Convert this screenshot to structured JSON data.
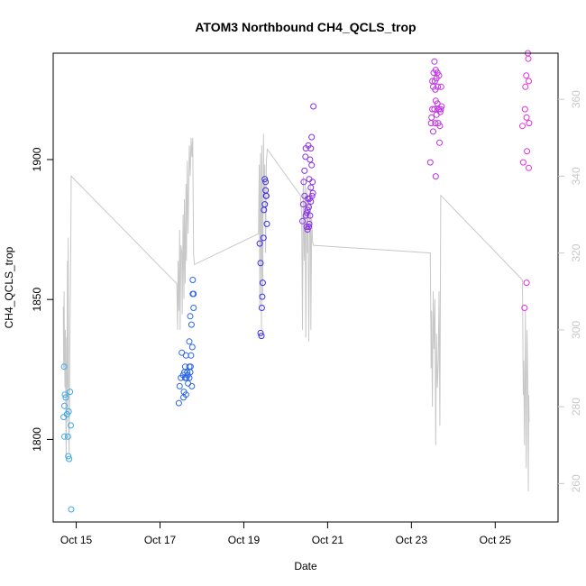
{
  "chart_data": {
    "type": "scatter",
    "title": "ATOM3 Northbound CH4_QCLS_trop",
    "xlabel": "Date",
    "ylabel": "CH4_QCLS_trop",
    "xlim": [
      14.45,
      26.5
    ],
    "ylim": [
      1770.5,
      1938
    ],
    "y2lim": [
      250,
      372
    ],
    "x_ticks": [
      15,
      17,
      19,
      21,
      23,
      25
    ],
    "x_tick_labels": [
      "Oct 15",
      "Oct 17",
      "Oct 19",
      "Oct 21",
      "Oct 23",
      "Oct 25"
    ],
    "y_ticks": [
      1800,
      1850,
      1900
    ],
    "y_tick_labels": [
      "1800",
      "1850",
      "1900"
    ],
    "y2_ticks": [
      260,
      280,
      300,
      320,
      340,
      360
    ],
    "y2_tick_labels": [
      "260",
      "280",
      "300",
      "320",
      "340",
      "360"
    ],
    "secondary_series_color": "#c8c8c8",
    "point_colors_note": "markers colored by time: sky blue -> blue -> purple -> magenta",
    "series": [
      {
        "color": "#3fa7e6",
        "points": [
          [
            14.71,
            1826
          ],
          [
            14.73,
            1816
          ],
          [
            14.75,
            1815
          ],
          [
            14.72,
            1812
          ],
          [
            14.7,
            1808
          ],
          [
            14.72,
            1801
          ],
          [
            14.8,
            1801
          ],
          [
            14.82,
            1810
          ],
          [
            14.78,
            1809
          ],
          [
            14.85,
            1817
          ],
          [
            14.87,
            1805
          ],
          [
            14.81,
            1794
          ],
          [
            14.83,
            1793
          ],
          [
            14.88,
            1775
          ]
        ]
      },
      {
        "color": "#2c66e6",
        "points": [
          [
            17.45,
            1813
          ],
          [
            17.47,
            1819
          ],
          [
            17.5,
            1822
          ],
          [
            17.52,
            1831
          ],
          [
            17.55,
            1823
          ],
          [
            17.57,
            1817
          ],
          [
            17.58,
            1824
          ],
          [
            17.6,
            1826
          ],
          [
            17.6,
            1822
          ],
          [
            17.62,
            1830
          ],
          [
            17.63,
            1822
          ],
          [
            17.65,
            1824
          ],
          [
            17.66,
            1823
          ],
          [
            17.67,
            1820
          ],
          [
            17.7,
            1826
          ],
          [
            17.7,
            1822
          ],
          [
            17.7,
            1835
          ],
          [
            17.72,
            1844
          ],
          [
            17.72,
            1824
          ],
          [
            17.73,
            1826
          ],
          [
            17.74,
            1830
          ],
          [
            17.75,
            1841
          ],
          [
            17.76,
            1819
          ],
          [
            17.77,
            1833
          ],
          [
            17.78,
            1852
          ],
          [
            17.78,
            1857
          ],
          [
            17.8,
            1847
          ],
          [
            17.8,
            1852
          ],
          [
            17.56,
            1815
          ],
          [
            17.62,
            1816
          ]
        ]
      },
      {
        "color": "#3a2fe6",
        "points": [
          [
            19.38,
            1870
          ],
          [
            19.4,
            1863
          ],
          [
            19.4,
            1838
          ],
          [
            19.42,
            1837
          ],
          [
            19.43,
            1847
          ],
          [
            19.44,
            1851
          ],
          [
            19.45,
            1856
          ],
          [
            19.47,
            1872
          ],
          [
            19.48,
            1882
          ],
          [
            19.5,
            1884
          ],
          [
            19.5,
            1893
          ],
          [
            19.52,
            1892
          ],
          [
            19.52,
            1889
          ],
          [
            19.53,
            1887
          ],
          [
            19.54,
            1887
          ],
          [
            19.55,
            1877
          ]
        ]
      },
      {
        "color": "#8a2fe6",
        "points": [
          [
            20.4,
            1878
          ],
          [
            20.42,
            1884
          ],
          [
            20.43,
            1892
          ],
          [
            20.45,
            1896
          ],
          [
            20.45,
            1887
          ],
          [
            20.47,
            1901
          ],
          [
            20.48,
            1904
          ],
          [
            20.5,
            1876
          ],
          [
            20.5,
            1881
          ],
          [
            20.52,
            1882
          ],
          [
            20.52,
            1875
          ],
          [
            20.53,
            1886
          ],
          [
            20.55,
            1883
          ],
          [
            20.55,
            1876
          ],
          [
            20.56,
            1877
          ],
          [
            20.57,
            1886
          ],
          [
            20.58,
            1880
          ],
          [
            20.58,
            1900
          ],
          [
            20.6,
            1890
          ],
          [
            20.6,
            1904
          ],
          [
            20.62,
            1898
          ],
          [
            20.62,
            1908
          ],
          [
            20.63,
            1887
          ],
          [
            20.65,
            1888
          ],
          [
            20.64,
            1892
          ],
          [
            20.66,
            1919
          ],
          [
            20.54,
            1905
          ],
          [
            20.48,
            1880
          ],
          [
            20.6,
            1885
          ],
          [
            20.56,
            1893
          ]
        ]
      },
      {
        "color": "#c12fe6",
        "points": [
          [
            23.45,
            1899
          ],
          [
            23.47,
            1913
          ],
          [
            23.48,
            1915
          ],
          [
            23.5,
            1928
          ],
          [
            23.5,
            1918
          ],
          [
            23.52,
            1926
          ],
          [
            23.53,
            1931
          ],
          [
            23.55,
            1935
          ],
          [
            23.55,
            1918
          ],
          [
            23.57,
            1913
          ],
          [
            23.57,
            1925
          ],
          [
            23.58,
            1894
          ],
          [
            23.58,
            1932
          ],
          [
            23.6,
            1929
          ],
          [
            23.6,
            1916
          ],
          [
            23.62,
            1920
          ],
          [
            23.62,
            1931
          ],
          [
            23.63,
            1926
          ],
          [
            23.65,
            1918
          ],
          [
            23.66,
            1930
          ],
          [
            23.67,
            1906
          ],
          [
            23.68,
            1912
          ],
          [
            23.69,
            1917
          ],
          [
            23.7,
            1918
          ],
          [
            23.71,
            1926
          ],
          [
            23.72,
            1919
          ],
          [
            23.52,
            1910
          ],
          [
            23.56,
            1928
          ],
          [
            23.64,
            1913
          ],
          [
            23.58,
            1921
          ]
        ]
      },
      {
        "color": "#e62fe0",
        "points": [
          [
            25.65,
            1912
          ],
          [
            25.67,
            1899
          ],
          [
            25.7,
            1847
          ],
          [
            25.71,
            1918
          ],
          [
            25.72,
            1926
          ],
          [
            25.74,
            1930
          ],
          [
            25.75,
            1915
          ],
          [
            25.76,
            1903
          ],
          [
            25.78,
            1938
          ],
          [
            25.79,
            1936
          ],
          [
            25.8,
            1928
          ],
          [
            25.8,
            1897
          ],
          [
            25.81,
            1913
          ],
          [
            25.75,
            1856
          ]
        ]
      }
    ],
    "secondary_line": [
      [
        14.69,
        306
      ],
      [
        14.7,
        290
      ],
      [
        14.71,
        310
      ],
      [
        14.72,
        296
      ],
      [
        14.73,
        285
      ],
      [
        14.74,
        300
      ],
      [
        14.75,
        282
      ],
      [
        14.76,
        266
      ],
      [
        14.77,
        298
      ],
      [
        14.78,
        276
      ],
      [
        14.79,
        318
      ],
      [
        14.8,
        285
      ],
      [
        14.81,
        324
      ],
      [
        14.82,
        272
      ],
      [
        14.83,
        268
      ],
      [
        14.85,
        300
      ],
      [
        14.87,
        322
      ],
      [
        14.88,
        340
      ],
      [
        17.4,
        312
      ],
      [
        17.42,
        300
      ],
      [
        17.43,
        318
      ],
      [
        17.45,
        305
      ],
      [
        17.47,
        326
      ],
      [
        17.48,
        300
      ],
      [
        17.5,
        322
      ],
      [
        17.52,
        320
      ],
      [
        17.53,
        304
      ],
      [
        17.55,
        330
      ],
      [
        17.57,
        308
      ],
      [
        17.58,
        334
      ],
      [
        17.6,
        312
      ],
      [
        17.62,
        338
      ],
      [
        17.63,
        318
      ],
      [
        17.65,
        344
      ],
      [
        17.67,
        325
      ],
      [
        17.7,
        348
      ],
      [
        17.72,
        340
      ],
      [
        17.74,
        350
      ],
      [
        17.76,
        345
      ],
      [
        17.78,
        350
      ],
      [
        17.8,
        320
      ],
      [
        17.82,
        317
      ],
      [
        19.35,
        325
      ],
      [
        19.37,
        343
      ],
      [
        19.38,
        306
      ],
      [
        19.4,
        346
      ],
      [
        19.42,
        300
      ],
      [
        19.43,
        348
      ],
      [
        19.45,
        309
      ],
      [
        19.47,
        351
      ],
      [
        19.48,
        335
      ],
      [
        19.5,
        343
      ],
      [
        19.52,
        320
      ],
      [
        19.54,
        344
      ],
      [
        19.56,
        347
      ],
      [
        20.35,
        335
      ],
      [
        20.38,
        330
      ],
      [
        20.4,
        300
      ],
      [
        20.42,
        340
      ],
      [
        20.44,
        318
      ],
      [
        20.46,
        338
      ],
      [
        20.48,
        298
      ],
      [
        20.5,
        337
      ],
      [
        20.52,
        320
      ],
      [
        20.53,
        335
      ],
      [
        20.55,
        297
      ],
      [
        20.57,
        324
      ],
      [
        20.59,
        338
      ],
      [
        20.6,
        300
      ],
      [
        20.62,
        329
      ],
      [
        20.64,
        323
      ],
      [
        20.66,
        322
      ],
      [
        23.45,
        320
      ],
      [
        23.47,
        290
      ],
      [
        23.48,
        305
      ],
      [
        23.5,
        280
      ],
      [
        23.52,
        310
      ],
      [
        23.54,
        295
      ],
      [
        23.56,
        308
      ],
      [
        23.58,
        270
      ],
      [
        23.6,
        299
      ],
      [
        23.62,
        285
      ],
      [
        23.64,
        291
      ],
      [
        23.66,
        310
      ],
      [
        23.68,
        275
      ],
      [
        23.7,
        335
      ],
      [
        25.65,
        313
      ],
      [
        25.67,
        283
      ],
      [
        25.68,
        292
      ],
      [
        25.7,
        270
      ],
      [
        25.72,
        305
      ],
      [
        25.74,
        264
      ],
      [
        25.76,
        300
      ],
      [
        25.78,
        285
      ],
      [
        25.79,
        258
      ],
      [
        25.8,
        283
      ],
      [
        25.81,
        276
      ]
    ]
  }
}
